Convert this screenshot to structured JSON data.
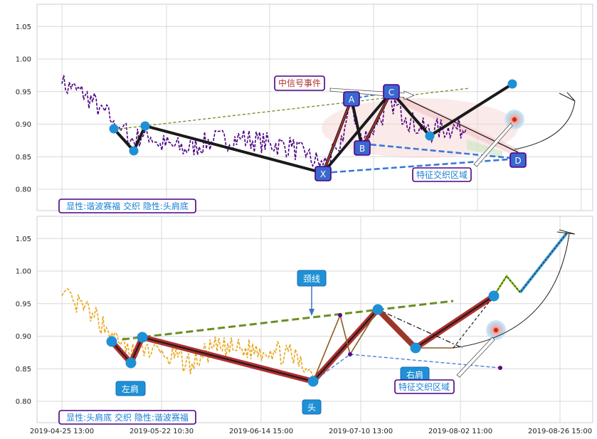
{
  "chart_data": [
    {
      "type": "line",
      "panel": "top",
      "ylim": [
        0.765,
        1.085
      ],
      "yticks": [
        "0.80",
        "0.85",
        "0.90",
        "0.95",
        "1.00",
        "1.05"
      ],
      "grid": true,
      "caption": "显性:谐波赛福 交织 隐性:头肩底",
      "point_labels": [
        "X",
        "A",
        "B",
        "C",
        "D"
      ],
      "annotations": {
        "signal": "中信号事件",
        "zone": "特征交织区域"
      },
      "colors": {
        "price": "#4b0082",
        "pattern_line": "#1a1a1a",
        "dashed": "#3a78d8",
        "trend": "#6b8e23",
        "caption_text": "#1a7fd4",
        "label_box": "#3a67d0"
      }
    },
    {
      "type": "line",
      "panel": "bottom",
      "ylim": [
        0.765,
        1.085
      ],
      "yticks": [
        "0.80",
        "0.85",
        "0.90",
        "0.95",
        "1.00",
        "1.05"
      ],
      "xticks": [
        "2019-04-25 13:00",
        "2019-05-22 10:30",
        "2019-06-14 15:00",
        "2019-07-10 13:00",
        "2019-08-02 11:00",
        "2019-08-26 15:00"
      ],
      "grid": true,
      "caption": "显性:头肩底 交织 隐性:谐波赛福",
      "annotations": {
        "left_shoulder": "左肩",
        "head": "头",
        "right_shoulder": "右肩",
        "neckline": "颈线",
        "zone": "特征交织区域"
      },
      "colors": {
        "price": "#e8a820",
        "pattern_line": "#b03030",
        "neckline": "#6b8e23",
        "projection": "#3a9ad8"
      }
    }
  ]
}
